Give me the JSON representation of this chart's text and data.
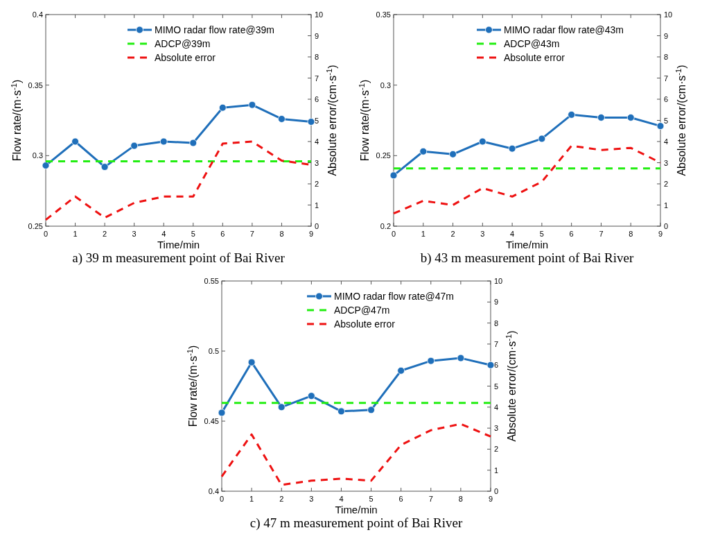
{
  "chart_data": [
    {
      "type": "line",
      "title": "a) 39 m measurement point of Bai River",
      "xlabel": "Time/min",
      "ylabel": "Flow rate/(m·s$^{-1}$)",
      "y2label": "Absolute error/(cm·s$^{-1}$)",
      "x": [
        0,
        1,
        2,
        3,
        4,
        5,
        6,
        7,
        8,
        9
      ],
      "xlim": [
        0,
        9
      ],
      "xticks": [
        0,
        1,
        2,
        3,
        4,
        5,
        6,
        7,
        8,
        9
      ],
      "ylim": [
        0.25,
        0.4
      ],
      "yticks": [
        0.25,
        0.3,
        0.35,
        0.4
      ],
      "y2lim": [
        0,
        10
      ],
      "y2ticks": [
        0,
        1,
        2,
        3,
        4,
        5,
        6,
        7,
        8,
        9,
        10
      ],
      "legend": "top right",
      "series": [
        {
          "name": "MIMO radar flow rate@39m",
          "color": "#1f6fba",
          "marker": "circle",
          "line_style": "solid",
          "values": [
            0.293,
            0.31,
            0.292,
            0.307,
            0.31,
            0.309,
            0.334,
            0.336,
            0.326,
            0.324
          ]
        },
        {
          "name": "ADCP@39m",
          "color": "#22ee11",
          "marker": "none",
          "line_style": "dashed",
          "values": [
            0.296,
            0.296,
            0.296,
            0.296,
            0.296,
            0.296,
            0.296,
            0.296,
            0.296,
            0.296
          ]
        },
        {
          "name": "Absolute error",
          "color": "#ee1111",
          "marker": "none",
          "line_style": "dashed",
          "axis": "y2",
          "values": [
            0.3,
            1.4,
            0.4,
            1.1,
            1.4,
            1.4,
            3.9,
            4.0,
            3.1,
            2.9
          ]
        }
      ]
    },
    {
      "type": "line",
      "title": "b) 43 m measurement point of Bai River",
      "xlabel": "Time/min",
      "ylabel": "Flow rate/(m·s$^{-1}$)",
      "y2label": "Absolute error/(cm·s$^{-1}$)",
      "x": [
        0,
        1,
        2,
        3,
        4,
        5,
        6,
        7,
        8,
        9
      ],
      "xlim": [
        0,
        9
      ],
      "xticks": [
        0,
        1,
        2,
        3,
        4,
        5,
        6,
        7,
        8,
        9
      ],
      "ylim": [
        0.2,
        0.35
      ],
      "yticks": [
        0.2,
        0.25,
        0.3,
        0.35
      ],
      "y2lim": [
        0,
        10
      ],
      "y2ticks": [
        0,
        1,
        2,
        3,
        4,
        5,
        6,
        7,
        8,
        9,
        10
      ],
      "legend": "top right",
      "series": [
        {
          "name": "MIMO radar flow rate@43m",
          "color": "#1f6fba",
          "marker": "circle",
          "line_style": "solid",
          "values": [
            0.236,
            0.253,
            0.251,
            0.26,
            0.255,
            0.262,
            0.279,
            0.277,
            0.277,
            0.271
          ]
        },
        {
          "name": "ADCP@43m",
          "color": "#22ee11",
          "marker": "none",
          "line_style": "dashed",
          "values": [
            0.241,
            0.241,
            0.241,
            0.241,
            0.241,
            0.241,
            0.241,
            0.241,
            0.241,
            0.241
          ]
        },
        {
          "name": "Absolute error",
          "color": "#ee1111",
          "marker": "none",
          "line_style": "dashed",
          "axis": "y2",
          "values": [
            0.6,
            1.2,
            1.0,
            1.8,
            1.4,
            2.1,
            3.8,
            3.6,
            3.7,
            3.0
          ]
        }
      ]
    },
    {
      "type": "line",
      "title": "c) 47 m measurement point of Bai River",
      "xlabel": "Time/min",
      "ylabel": "Flow rate/(m·s$^{-1}$)",
      "y2label": "Absolute error/(cm·s$^{-1}$)",
      "x": [
        0,
        1,
        2,
        3,
        4,
        5,
        6,
        7,
        8,
        9
      ],
      "xlim": [
        0,
        9
      ],
      "xticks": [
        0,
        1,
        2,
        3,
        4,
        5,
        6,
        7,
        8,
        9
      ],
      "ylim": [
        0.4,
        0.55
      ],
      "yticks": [
        0.4,
        0.45,
        0.5,
        0.55
      ],
      "y2lim": [
        0,
        10
      ],
      "y2ticks": [
        0,
        1,
        2,
        3,
        4,
        5,
        6,
        7,
        8,
        9,
        10
      ],
      "legend": "top right",
      "series": [
        {
          "name": "MIMO radar flow rate@47m",
          "color": "#1f6fba",
          "marker": "circle",
          "line_style": "solid",
          "values": [
            0.456,
            0.492,
            0.46,
            0.468,
            0.457,
            0.458,
            0.486,
            0.493,
            0.495,
            0.49
          ]
        },
        {
          "name": "ADCP@47m",
          "color": "#22ee11",
          "marker": "none",
          "line_style": "dashed",
          "values": [
            0.463,
            0.463,
            0.463,
            0.463,
            0.463,
            0.463,
            0.463,
            0.463,
            0.463,
            0.463
          ]
        },
        {
          "name": "Absolute error",
          "color": "#ee1111",
          "marker": "none",
          "line_style": "dashed",
          "axis": "y2",
          "values": [
            0.7,
            2.7,
            0.3,
            0.5,
            0.6,
            0.5,
            2.2,
            2.9,
            3.2,
            2.6
          ]
        }
      ]
    }
  ]
}
